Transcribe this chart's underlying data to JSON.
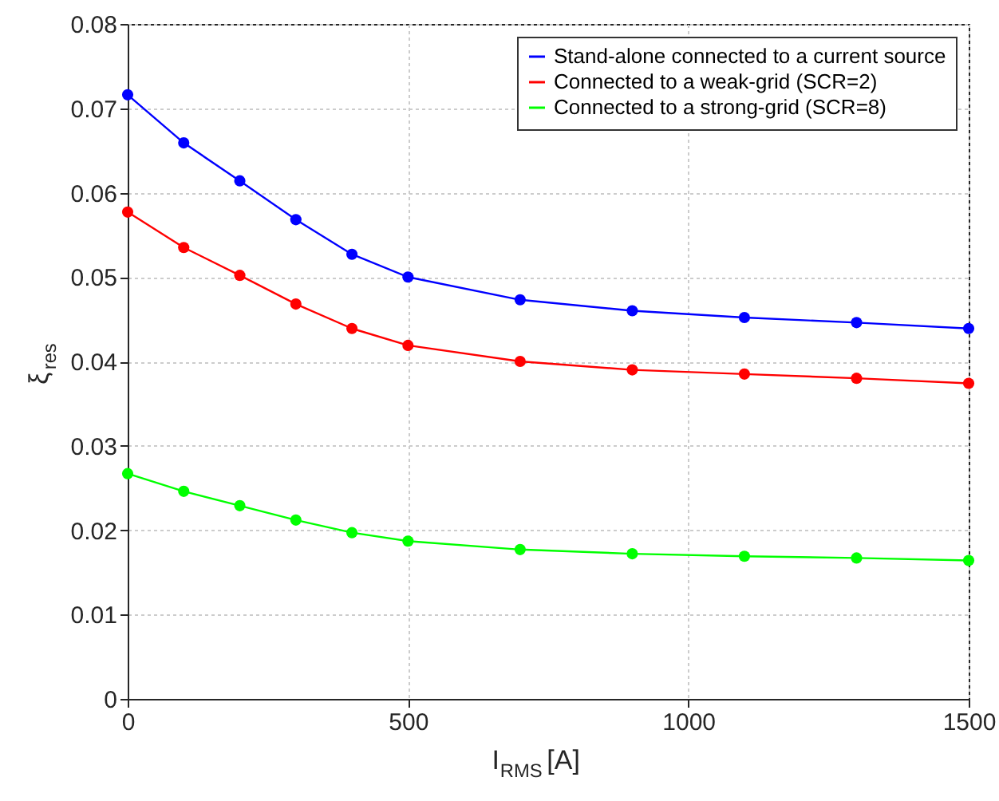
{
  "chart_data": {
    "type": "line",
    "xlabel": "I$_{RMS}$ [A]",
    "ylabel": "ξ$_{res}$",
    "x": [
      0,
      100,
      200,
      300,
      400,
      500,
      700,
      900,
      1100,
      1300,
      1500
    ],
    "series": [
      {
        "name": "Stand-alone connected to a current source",
        "color": "#0000ff",
        "values": [
          0.0716,
          0.0659,
          0.0614,
          0.0568,
          0.0527,
          0.05,
          0.0473,
          0.046,
          0.0452,
          0.0446,
          0.0439
        ]
      },
      {
        "name": "Connected to a weak-grid (SCR=2)",
        "color": "#ff0000",
        "values": [
          0.0577,
          0.0535,
          0.0502,
          0.0468,
          0.0439,
          0.0419,
          0.04,
          0.039,
          0.0385,
          0.038,
          0.0374
        ]
      },
      {
        "name": "Connected to a strong-grid (SCR=8)",
        "color": "#00ff00",
        "values": [
          0.0267,
          0.0246,
          0.0229,
          0.0212,
          0.0197,
          0.0187,
          0.0177,
          0.0172,
          0.0169,
          0.0167,
          0.0164
        ]
      }
    ],
    "xlim": [
      0,
      1500
    ],
    "xticks": [
      0,
      500,
      1000,
      1500
    ],
    "ylim": [
      0,
      0.08
    ],
    "yticks": [
      0,
      0.01,
      0.02,
      0.03,
      0.04,
      0.05,
      0.06,
      0.07,
      0.08
    ],
    "grid": true,
    "legend": "top right",
    "marker": "circle",
    "line_style": "solid"
  }
}
